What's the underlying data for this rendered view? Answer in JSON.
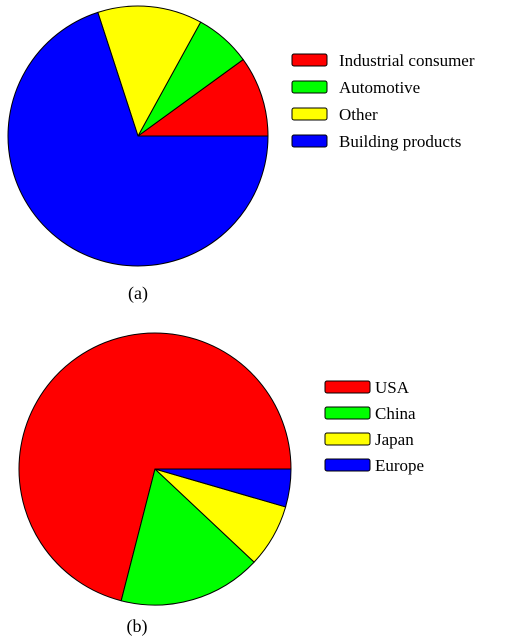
{
  "chart_data": [
    {
      "type": "pie",
      "caption": "(a)",
      "start_angle_deg": 0,
      "direction": "counterclockwise",
      "legend_position": "right",
      "slices": [
        {
          "label": "Industrial consumer",
          "value": 10,
          "color": "#ff0000"
        },
        {
          "label": "Automotive",
          "value": 7,
          "color": "#00ff00"
        },
        {
          "label": "Other",
          "value": 13,
          "color": "#ffff00"
        },
        {
          "label": "Building products",
          "value": 70,
          "color": "#0000ff"
        }
      ]
    },
    {
      "type": "pie",
      "caption": "(b)",
      "start_angle_deg": 0,
      "direction": "counterclockwise",
      "legend_position": "right",
      "slices": [
        {
          "label": "USA",
          "value": 71,
          "color": "#ff0000"
        },
        {
          "label": "China",
          "value": 17,
          "color": "#00ff00"
        },
        {
          "label": "Japan",
          "value": 7.5,
          "color": "#ffff00"
        },
        {
          "label": "Europe",
          "value": 4.5,
          "color": "#0000ff"
        }
      ]
    }
  ]
}
